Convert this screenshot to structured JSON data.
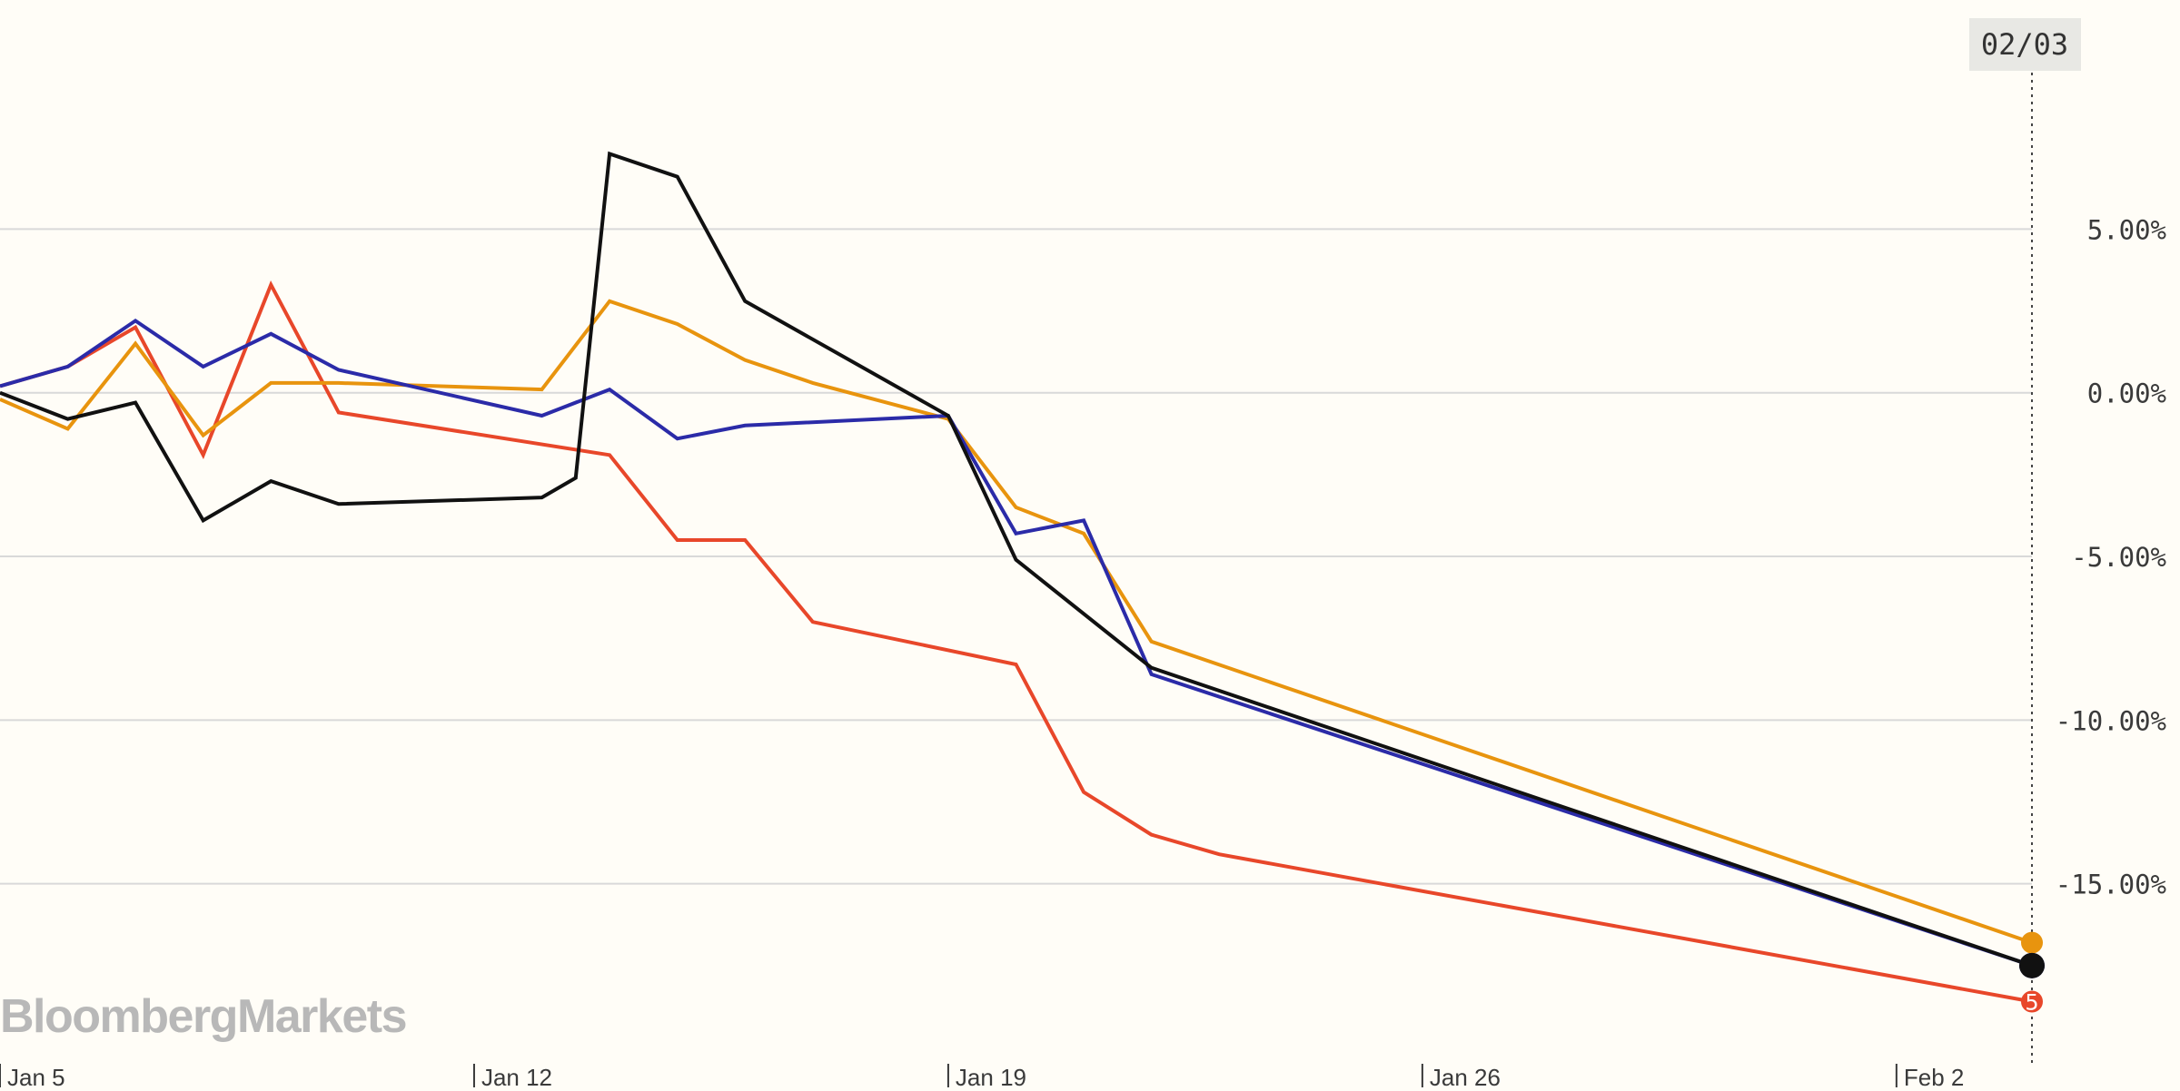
{
  "watermark": "BloombergMarkets",
  "cursor_label": "02/03",
  "colors": {
    "background": "#fffdf7",
    "grid": "#d9d9d9",
    "axis_text": "#3a3a3a",
    "cursor_box": "#e8e8e4",
    "watermark": "#b8b8b8"
  },
  "chart_data": {
    "type": "line",
    "x_labels": [
      "Jan 5",
      "Jan 12",
      "Jan 19",
      "Jan 26",
      "Feb 2"
    ],
    "x_tick_dates": [
      "2016-01-04",
      "2016-01-11",
      "2016-01-18",
      "2016-01-25",
      "2016-02-01"
    ],
    "x_range": [
      "2016-01-04",
      "2016-02-03"
    ],
    "y_ticks": [
      5,
      0,
      -5,
      -10,
      -15
    ],
    "y_tick_labels": [
      "5.00%",
      "0.00%",
      "-5.00%",
      "-10.00%",
      "-15.00%"
    ],
    "ylim": [
      -20.5,
      12
    ],
    "grid": true,
    "legend": "none",
    "title": "",
    "xlabel": "",
    "ylabel": "",
    "series": [
      {
        "color": "#e8472a",
        "end_marker_label": "5",
        "points": [
          [
            "2016-01-04",
            0.2
          ],
          [
            "2016-01-05",
            0.8
          ],
          [
            "2016-01-06",
            2.0
          ],
          [
            "2016-01-07",
            -1.9
          ],
          [
            "2016-01-08",
            3.3
          ],
          [
            "2016-01-09",
            -0.6
          ],
          [
            "2016-01-13",
            -1.9
          ],
          [
            "2016-01-14",
            -4.5
          ],
          [
            "2016-01-15",
            -4.5
          ],
          [
            "2016-01-16",
            -7.0
          ],
          [
            "2016-01-19",
            -8.3
          ],
          [
            "2016-01-20",
            -12.2
          ],
          [
            "2016-01-21",
            -13.5
          ],
          [
            "2016-01-22",
            -14.1
          ],
          [
            "2016-02-03",
            -18.6
          ]
        ]
      },
      {
        "color": "#e8940e",
        "points": [
          [
            "2016-01-04",
            -0.2
          ],
          [
            "2016-01-05",
            -1.1
          ],
          [
            "2016-01-06",
            1.5
          ],
          [
            "2016-01-07",
            -1.3
          ],
          [
            "2016-01-08",
            0.3
          ],
          [
            "2016-01-09",
            0.3
          ],
          [
            "2016-01-12",
            0.1
          ],
          [
            "2016-01-13",
            2.8
          ],
          [
            "2016-01-14",
            2.1
          ],
          [
            "2016-01-15",
            1.0
          ],
          [
            "2016-01-16",
            0.3
          ],
          [
            "2016-01-18",
            -0.8
          ],
          [
            "2016-01-19",
            -3.5
          ],
          [
            "2016-01-20",
            -4.3
          ],
          [
            "2016-01-21",
            -7.6
          ],
          [
            "2016-02-03",
            -16.8
          ]
        ]
      },
      {
        "color": "#2b2ba8",
        "points": [
          [
            "2016-01-04",
            0.2
          ],
          [
            "2016-01-05",
            0.8
          ],
          [
            "2016-01-06",
            2.2
          ],
          [
            "2016-01-07",
            0.8
          ],
          [
            "2016-01-08",
            1.8
          ],
          [
            "2016-01-09",
            0.7
          ],
          [
            "2016-01-12",
            -0.7
          ],
          [
            "2016-01-13",
            0.1
          ],
          [
            "2016-01-14",
            -1.4
          ],
          [
            "2016-01-15",
            -1.0
          ],
          [
            "2016-01-18",
            -0.7
          ],
          [
            "2016-01-19",
            -4.3
          ],
          [
            "2016-01-20",
            -3.9
          ],
          [
            "2016-01-21",
            -8.6
          ],
          [
            "2016-02-03",
            -17.5
          ]
        ]
      },
      {
        "color": "#111111",
        "points": [
          [
            "2016-01-04",
            0.0
          ],
          [
            "2016-01-05",
            -0.8
          ],
          [
            "2016-01-06",
            -0.3
          ],
          [
            "2016-01-07",
            -3.9
          ],
          [
            "2016-01-08",
            -2.7
          ],
          [
            "2016-01-09",
            -3.4
          ],
          [
            "2016-01-12",
            -3.2
          ],
          [
            "2016-01-12.5",
            -2.6
          ],
          [
            "2016-01-13",
            7.3
          ],
          [
            "2016-01-14",
            6.6
          ],
          [
            "2016-01-15",
            2.8
          ],
          [
            "2016-01-18",
            -0.7
          ],
          [
            "2016-01-19",
            -5.1
          ],
          [
            "2016-01-21",
            -8.4
          ],
          [
            "2016-02-03",
            -17.5
          ]
        ]
      }
    ]
  }
}
